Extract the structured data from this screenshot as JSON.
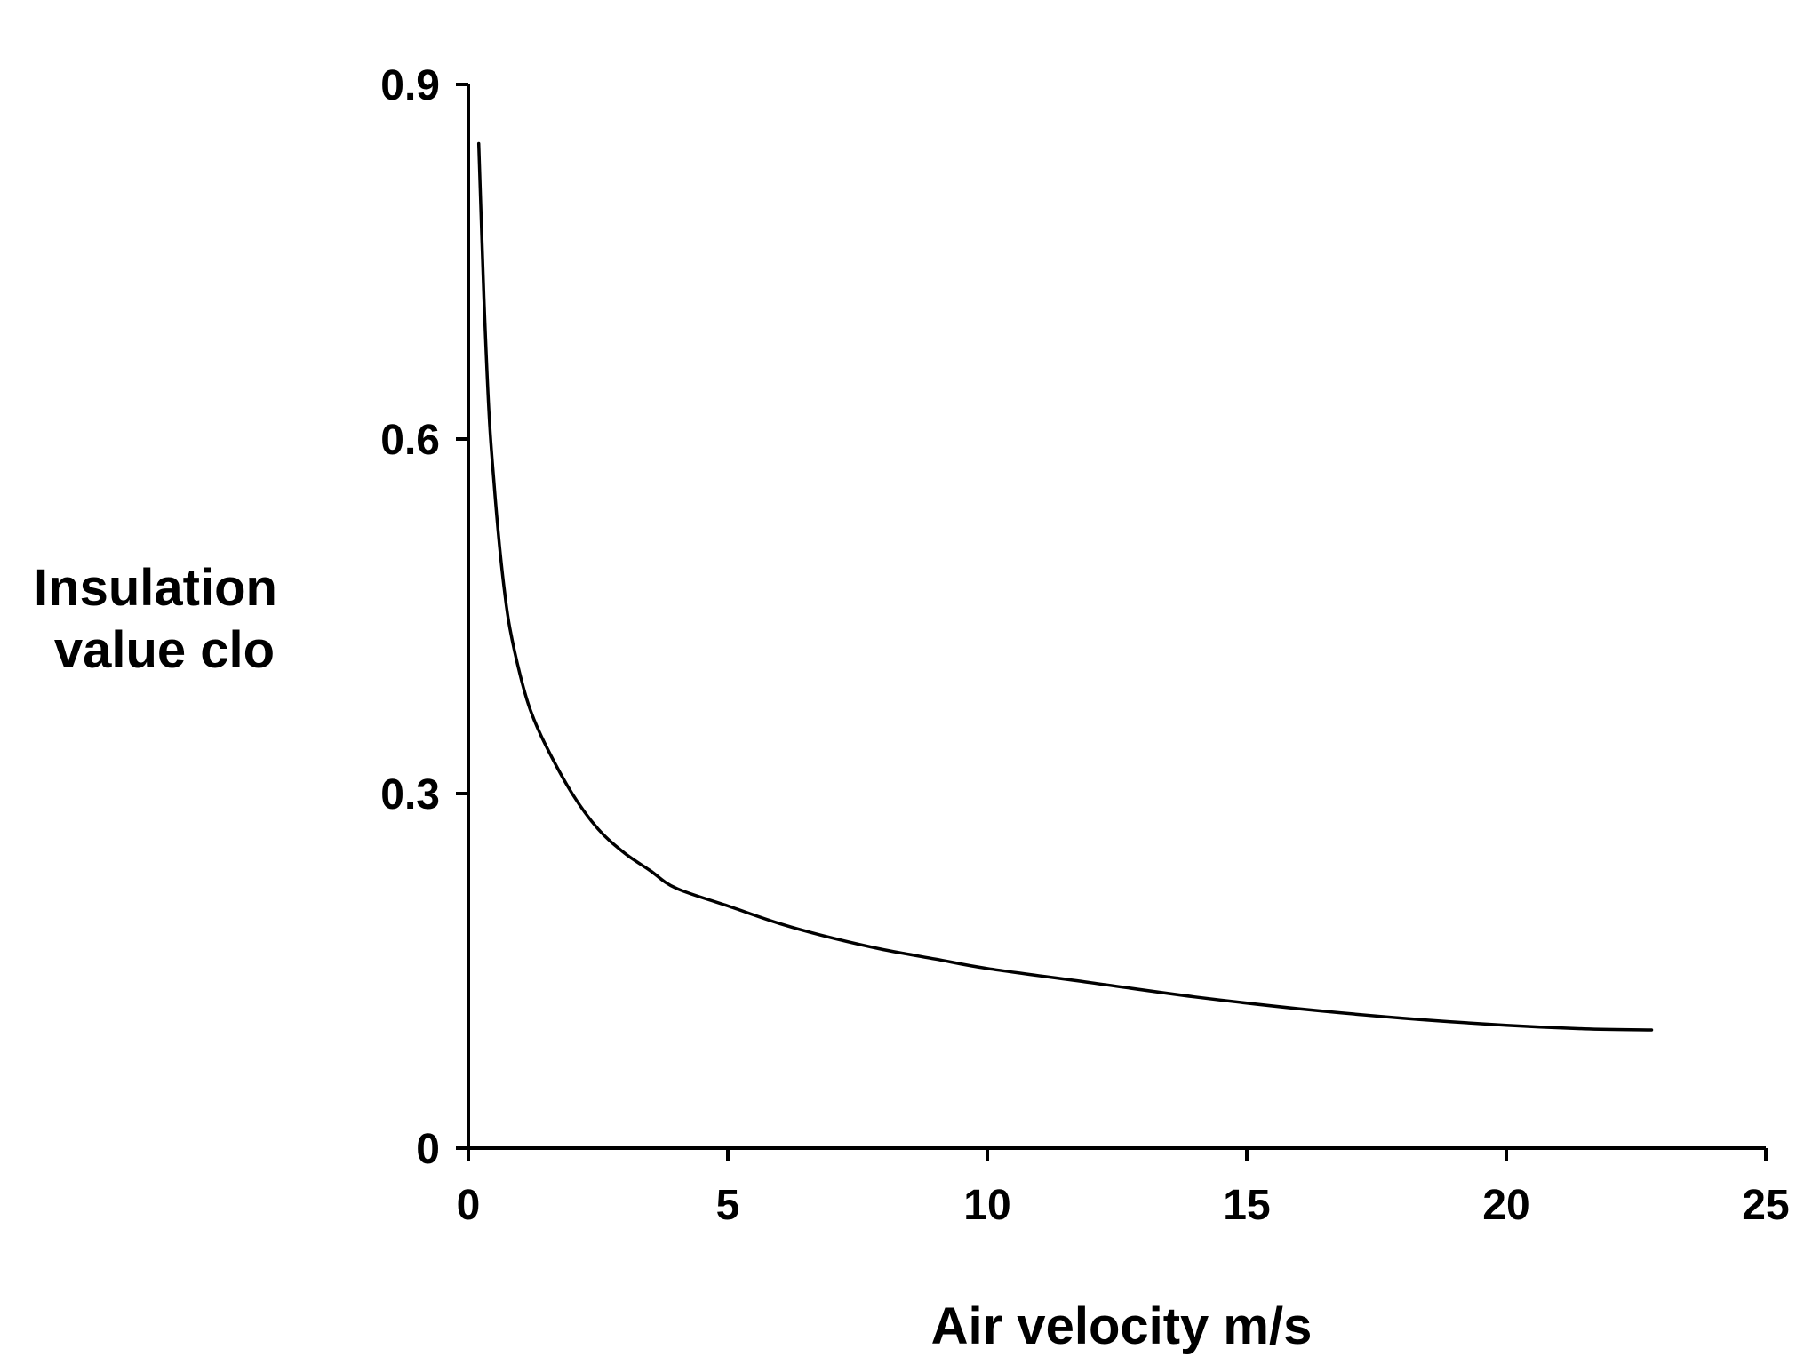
{
  "chart_data": {
    "type": "line",
    "title": "",
    "xlabel": "Air velocity m/s",
    "ylabel_lines": [
      "Insulation",
      "value clo"
    ],
    "xlim": [
      0,
      25
    ],
    "ylim": [
      0,
      0.9
    ],
    "x_ticks": [
      0,
      5,
      10,
      15,
      20,
      25
    ],
    "x_tick_labels": [
      "0",
      "5",
      "10",
      "15",
      "20",
      "25"
    ],
    "y_ticks": [
      0,
      0.3,
      0.6,
      0.9
    ],
    "y_tick_labels": [
      "0",
      "0.3",
      "0.6",
      "0.9"
    ],
    "grid": false,
    "legend": "none",
    "series": [
      {
        "name": "Insulation value",
        "color": "#000000",
        "x": [
          0.2,
          0.3,
          0.4,
          0.5,
          0.6,
          0.7,
          0.8,
          1.0,
          1.2,
          1.5,
          2.0,
          2.5,
          3.0,
          3.5,
          4.0,
          5.0,
          6.0,
          7.0,
          8.0,
          9.0,
          10.0,
          12.0,
          14.0,
          16.0,
          18.0,
          20.0,
          21.5,
          22.8
        ],
        "y": [
          0.85,
          0.72,
          0.62,
          0.56,
          0.51,
          0.47,
          0.44,
          0.4,
          0.37,
          0.34,
          0.3,
          0.27,
          0.25,
          0.235,
          0.22,
          0.205,
          0.19,
          0.178,
          0.168,
          0.16,
          0.152,
          0.14,
          0.128,
          0.118,
          0.11,
          0.104,
          0.101,
          0.1
        ]
      }
    ]
  }
}
